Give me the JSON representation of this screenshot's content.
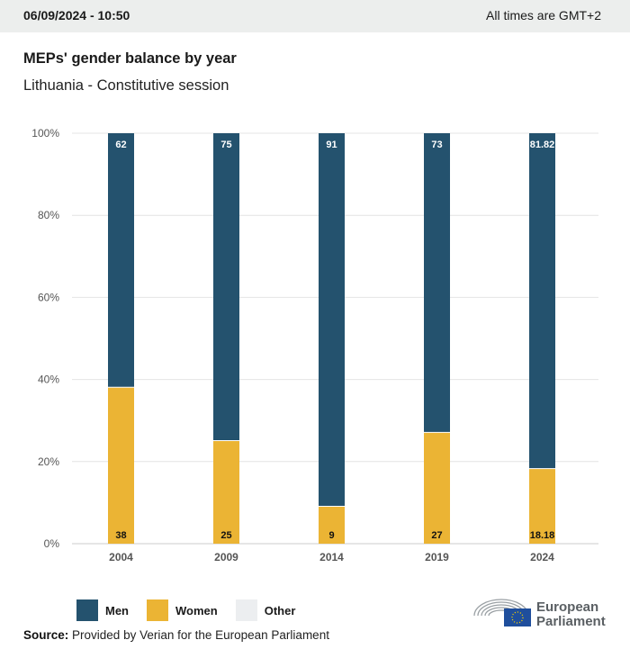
{
  "header": {
    "datetime": "06/09/2024 - 10:50",
    "timezone_note": "All times are GMT+2"
  },
  "chart_title": "MEPs' gender balance by year",
  "chart_subtitle": "Lithuania - Constitutive session",
  "colors": {
    "men": "#24526e",
    "women": "#ebb434",
    "other": "#eceef0",
    "grid": "#e4e4e4",
    "axis_text": "#555555"
  },
  "chart_data": {
    "type": "bar",
    "stacked": true,
    "title": "MEPs' gender balance by year",
    "subtitle": "Lithuania - Constitutive session",
    "categories": [
      "2004",
      "2009",
      "2014",
      "2019",
      "2024"
    ],
    "series": [
      {
        "name": "Women",
        "values": [
          38,
          25,
          9,
          27,
          18.18
        ],
        "labels": [
          "38",
          "25",
          "9",
          "27",
          "18.18"
        ]
      },
      {
        "name": "Men",
        "values": [
          62,
          75,
          91,
          73,
          81.82
        ],
        "labels": [
          "62",
          "75",
          "91",
          "73",
          "81.82"
        ]
      },
      {
        "name": "Other",
        "values": [
          0,
          0,
          0,
          0,
          0
        ]
      }
    ],
    "xlabel": "",
    "ylabel": "",
    "ylim": [
      0,
      100
    ],
    "yticks": [
      "0%",
      "20%",
      "40%",
      "60%",
      "80%",
      "100%"
    ],
    "grid": true,
    "legend": "bottom-left"
  },
  "legend": {
    "men": "Men",
    "women": "Women",
    "other": "Other"
  },
  "source": {
    "label": "Source:",
    "text": "Provided by Verian for the European Parliament"
  },
  "logo": {
    "line1": "European",
    "line2": "Parliament"
  }
}
